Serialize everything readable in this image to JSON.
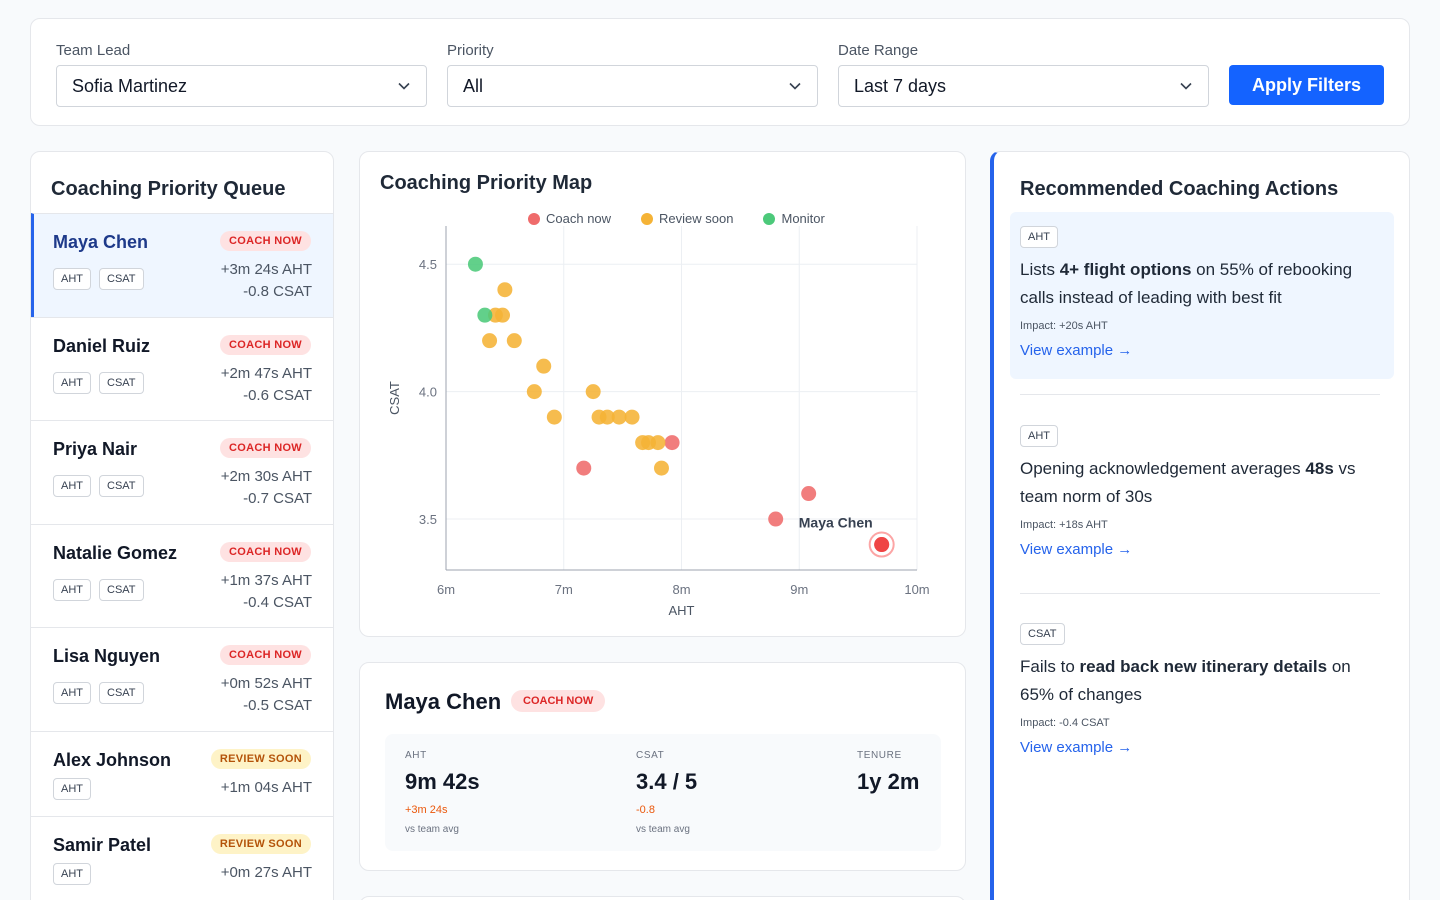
{
  "filters": {
    "team_lead": {
      "label": "Team Lead",
      "value": "Sofia Martinez"
    },
    "priority": {
      "label": "Priority",
      "value": "All"
    },
    "date_range": {
      "label": "Date Range",
      "value": "Last 7 days"
    },
    "apply_label": "Apply Filters"
  },
  "queue": {
    "title": "Coaching Priority Queue",
    "items": [
      {
        "name": "Maya Chen",
        "badge": "COACH NOW",
        "tags": [
          "AHT",
          "CSAT"
        ],
        "aht": "+3m 24s AHT",
        "csat": "-0.8 CSAT"
      },
      {
        "name": "Daniel Ruiz",
        "badge": "COACH NOW",
        "tags": [
          "AHT",
          "CSAT"
        ],
        "aht": "+2m 47s AHT",
        "csat": "-0.6 CSAT"
      },
      {
        "name": "Priya Nair",
        "badge": "COACH NOW",
        "tags": [
          "AHT",
          "CSAT"
        ],
        "aht": "+2m 30s AHT",
        "csat": "-0.7 CSAT"
      },
      {
        "name": "Natalie Gomez",
        "badge": "COACH NOW",
        "tags": [
          "AHT",
          "CSAT"
        ],
        "aht": "+1m 37s AHT",
        "csat": "-0.4 CSAT"
      },
      {
        "name": "Lisa Nguyen",
        "badge": "COACH NOW",
        "tags": [
          "AHT",
          "CSAT"
        ],
        "aht": "+0m 52s AHT",
        "csat": "-0.5 CSAT"
      },
      {
        "name": "Alex Johnson",
        "badge": "REVIEW SOON",
        "tags": [
          "AHT"
        ],
        "aht": "+1m 04s AHT"
      },
      {
        "name": "Samir Patel",
        "badge": "REVIEW SOON",
        "tags": [
          "AHT"
        ],
        "aht": "+0m 27s AHT"
      }
    ]
  },
  "map": {
    "title": "Coaching Priority Map",
    "legend": [
      "Coach now",
      "Review soon",
      "Monitor"
    ],
    "colors": {
      "coach": "#ef6b6b",
      "review": "#f5b336",
      "monitor": "#4cc97a",
      "highlight": "#ef4444"
    }
  },
  "chart_data": {
    "type": "scatter",
    "xlabel": "AHT",
    "ylabel": "CSAT",
    "xlim": [
      6,
      10
    ],
    "ylim": [
      3.3,
      4.65
    ],
    "xticks": [
      "6m",
      "7m",
      "8m",
      "9m",
      "10m"
    ],
    "yticks": [
      "3.5",
      "4.0",
      "4.5"
    ],
    "highlight_label": "Maya Chen",
    "series": [
      {
        "name": "Coach now",
        "points": [
          [
            7.17,
            3.7
          ],
          [
            7.92,
            3.8
          ],
          [
            8.8,
            3.5
          ],
          [
            9.08,
            3.6
          ],
          [
            9.7,
            3.4
          ]
        ]
      },
      {
        "name": "Review soon",
        "points": [
          [
            6.5,
            4.4
          ],
          [
            6.42,
            4.3
          ],
          [
            6.48,
            4.3
          ],
          [
            6.37,
            4.2
          ],
          [
            6.58,
            4.2
          ],
          [
            6.83,
            4.1
          ],
          [
            6.75,
            4.0
          ],
          [
            6.92,
            3.9
          ],
          [
            7.25,
            4.0
          ],
          [
            7.3,
            3.9
          ],
          [
            7.37,
            3.9
          ],
          [
            7.47,
            3.9
          ],
          [
            7.58,
            3.9
          ],
          [
            7.67,
            3.8
          ],
          [
            7.72,
            3.8
          ],
          [
            7.8,
            3.8
          ],
          [
            7.83,
            3.7
          ]
        ]
      },
      {
        "name": "Monitor",
        "points": [
          [
            6.25,
            4.5
          ],
          [
            6.33,
            4.3
          ]
        ]
      }
    ]
  },
  "detail": {
    "name": "Maya Chen",
    "badge": "COACH NOW",
    "aht": {
      "label": "AHT",
      "value": "9m 42s",
      "delta": "+3m 24s",
      "sub": "vs team avg"
    },
    "csat": {
      "label": "CSAT",
      "value": "3.4 / 5",
      "delta": "-0.8",
      "sub": "vs team avg"
    },
    "tenure": {
      "label": "TENURE",
      "value": "1y 2m"
    }
  },
  "actions": {
    "title": "Recommended Coaching Actions",
    "items": [
      {
        "tag": "AHT",
        "pre": "Lists ",
        "bold": "4+ flight options",
        "post": " on 55% of rebooking calls instead of leading with best fit",
        "impact": "Impact: +20s AHT",
        "link": "View example →"
      },
      {
        "tag": "AHT",
        "pre": "Opening acknowledgement averages ",
        "bold": "48s",
        "post": " vs team norm of 30s",
        "impact": "Impact: +18s AHT",
        "link": "View example →"
      },
      {
        "tag": "CSAT",
        "pre": "Fails to ",
        "bold": "read back new itinerary details",
        "post": " on 65% of changes",
        "impact": "Impact: -0.4 CSAT",
        "link": "View example →"
      }
    ]
  }
}
